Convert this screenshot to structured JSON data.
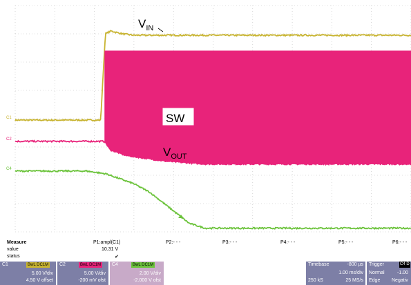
{
  "chart_data": {
    "type": "line",
    "title": "",
    "xlabel": "",
    "ylabel": "",
    "grid": true,
    "x_unit": "ms",
    "xlim": [
      -0.8,
      9.2
    ],
    "ylim": [
      -4,
      4
    ],
    "y_unit": "div",
    "series": [
      {
        "name": "VIN",
        "channel": "C1",
        "color": "#c8b432",
        "x": [
          -0.8,
          1.36,
          1.42,
          1.48,
          1.62,
          1.9,
          2.2,
          9.2
        ],
        "y": [
          -0.05,
          -0.05,
          1.5,
          3.0,
          3.1,
          3.0,
          2.95,
          2.95
        ]
      },
      {
        "name": "SW",
        "channel": "C2",
        "color": "#e8237a",
        "x": [
          -0.8,
          0.8,
          1.3,
          1.46,
          1.6,
          2.0,
          3.0,
          4.0,
          5.0,
          9.2
        ],
        "y": [
          -0.8,
          -0.8,
          -0.8,
          -0.8,
          -1.1,
          -1.3,
          -1.5,
          -1.6,
          -1.6,
          -1.6
        ],
        "envelope_top": [
          null,
          null,
          null,
          2.4,
          2.4,
          2.4,
          2.4,
          2.4,
          2.4,
          2.4
        ]
      },
      {
        "name": "VOUT",
        "channel": "C4",
        "color": "#6cc33c",
        "x": [
          -0.8,
          1.0,
          1.5,
          2.2,
          2.6,
          3.6,
          4.0,
          9.2
        ],
        "y": [
          -1.85,
          -1.85,
          -1.95,
          -2.3,
          -2.6,
          -3.7,
          -3.87,
          -3.87
        ]
      }
    ],
    "annotations": {
      "vin": {
        "main": "V",
        "sub": "IN"
      },
      "sw": "SW",
      "vout": {
        "main": "V",
        "sub": "OUT"
      }
    },
    "channel_markers": [
      "C1",
      "C2",
      "C4"
    ]
  },
  "measure": {
    "label": "Measure",
    "row_value": "value",
    "row_status": "status",
    "p1": {
      "name": "P1:ampl(C1)",
      "value": "10.31 V",
      "status": "✔"
    },
    "p2": "P2:- - -",
    "p3": "P3:- - -",
    "p4": "P4:- - -",
    "p5": "P5:- - -",
    "p6": "P6:- - -"
  },
  "channels": [
    {
      "name": "C1",
      "badge": "BwL DC1M",
      "scale": "5.00 V/div",
      "offset": "4.50 V offset",
      "color": "#c8b432",
      "badge_color": "#c8b432"
    },
    {
      "name": "C2",
      "badge": "BwL DC1M",
      "scale": "5.00 V/div",
      "offset": "-200 mV ofst",
      "color": "#e8237a",
      "badge_color": "#e8237a"
    },
    {
      "name": "C4",
      "badge": "BwL DC1M",
      "scale": "2.00 V/div",
      "offset": "-2.000 V ofst",
      "color": "#6cc33c",
      "badge_color": "#6cc33c"
    }
  ],
  "timebase": {
    "label": "Timebase",
    "delay": "-800 µs",
    "scale": "1.00 ms/div",
    "samples": "250 kS",
    "rate": "25 MS/s"
  },
  "trigger": {
    "label": "Trigger",
    "source": "C4 D",
    "mode": "Normal",
    "level": "-1.00",
    "type": "Edge",
    "slope": "Negativ"
  }
}
